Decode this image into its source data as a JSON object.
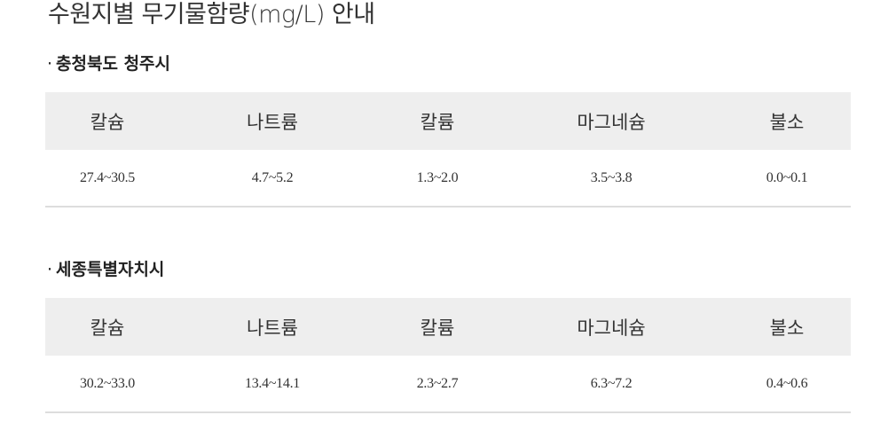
{
  "page": {
    "title": "수원지별 무기물함량(mg/L) 안내"
  },
  "sections": [
    {
      "bullet": "·",
      "title": "충청북도 청주시",
      "headers": [
        "칼슘",
        "나트륨",
        "칼륨",
        "마그네슘",
        "불소"
      ],
      "values": [
        "27.4~30.5",
        "4.7~5.2",
        "1.3~2.0",
        "3.5~3.8",
        "0.0~0.1"
      ]
    },
    {
      "bullet": "·",
      "title": "세종특별자치시",
      "headers": [
        "칼슘",
        "나트륨",
        "칼륨",
        "마그네슘",
        "불소"
      ],
      "values": [
        "30.2~33.0",
        "13.4~14.1",
        "2.3~2.7",
        "6.3~7.2",
        "0.4~0.6"
      ]
    }
  ],
  "colors": {
    "header_bg": "#eeeeee",
    "row_border": "#dddddd",
    "text": "#333333"
  }
}
